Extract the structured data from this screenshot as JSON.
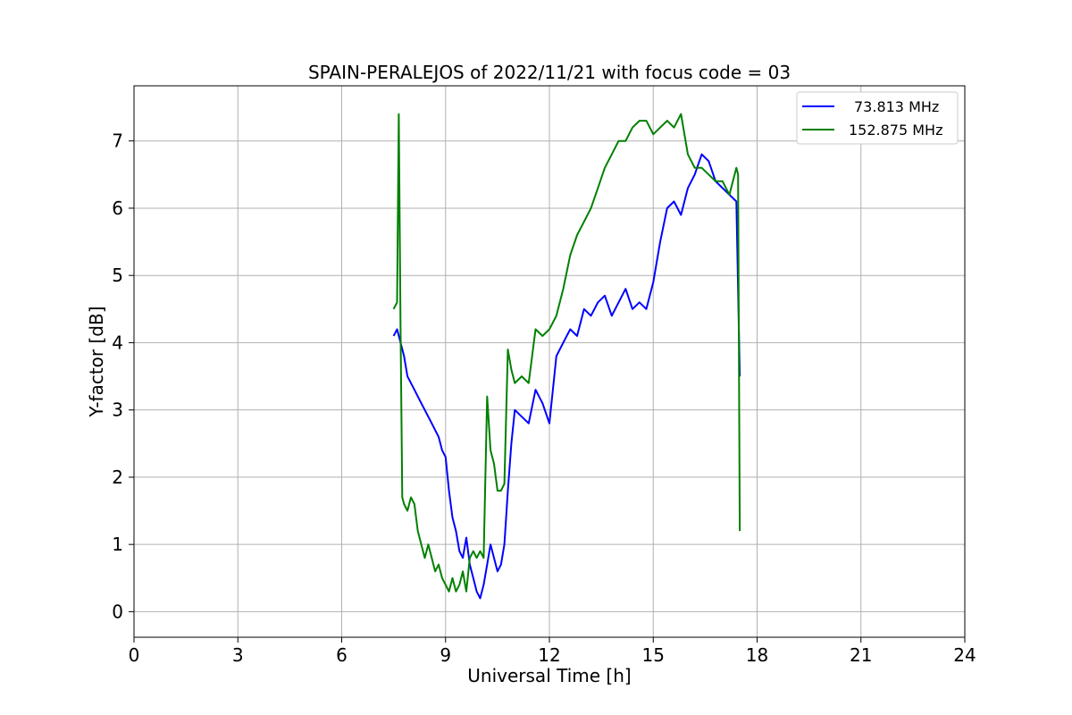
{
  "chart_data": {
    "type": "line",
    "title": "SPAIN-PERALEJOS of 2022/11/21 with focus code = 03",
    "xlabel": "Universal Time [h]",
    "ylabel": "Y-factor [dB]",
    "xlim": [
      0,
      24
    ],
    "ylim": [
      -0.38,
      7.82
    ],
    "xticks": [
      0,
      3,
      6,
      9,
      12,
      15,
      18,
      21,
      24
    ],
    "yticks": [
      0,
      1,
      2,
      3,
      4,
      5,
      6,
      7
    ],
    "grid": true,
    "legend_position": "top-right",
    "series": [
      {
        "name": "73.813 MHz",
        "color": "#0000ff",
        "x": [
          7.5,
          7.6,
          7.7,
          7.8,
          7.9,
          8.0,
          8.1,
          8.2,
          8.3,
          8.4,
          8.5,
          8.6,
          8.7,
          8.8,
          8.9,
          9.0,
          9.1,
          9.2,
          9.3,
          9.4,
          9.5,
          9.6,
          9.7,
          9.8,
          9.9,
          10.0,
          10.1,
          10.2,
          10.3,
          10.4,
          10.5,
          10.6,
          10.7,
          10.8,
          10.9,
          11.0,
          11.2,
          11.4,
          11.6,
          11.8,
          12.0,
          12.2,
          12.4,
          12.6,
          12.8,
          13.0,
          13.2,
          13.4,
          13.6,
          13.8,
          14.0,
          14.2,
          14.4,
          14.6,
          14.8,
          15.0,
          15.2,
          15.4,
          15.6,
          15.8,
          16.0,
          16.2,
          16.4,
          16.6,
          16.8,
          17.0,
          17.2,
          17.4,
          17.5
        ],
        "y": [
          4.1,
          4.2,
          4.0,
          3.8,
          3.5,
          3.4,
          3.3,
          3.2,
          3.1,
          3.0,
          2.9,
          2.8,
          2.7,
          2.6,
          2.4,
          2.3,
          1.8,
          1.4,
          1.2,
          0.9,
          0.8,
          1.1,
          0.7,
          0.5,
          0.3,
          0.2,
          0.4,
          0.7,
          1.0,
          0.8,
          0.6,
          0.7,
          1.0,
          1.8,
          2.5,
          3.0,
          2.9,
          2.8,
          3.3,
          3.1,
          2.8,
          3.8,
          4.0,
          4.2,
          4.1,
          4.5,
          4.4,
          4.6,
          4.7,
          4.4,
          4.6,
          4.8,
          4.5,
          4.6,
          4.5,
          4.9,
          5.5,
          6.0,
          6.1,
          5.9,
          6.3,
          6.5,
          6.8,
          6.7,
          6.4,
          6.3,
          6.2,
          6.1,
          3.5
        ]
      },
      {
        "name": "152.875 MHz",
        "color": "#008000",
        "x": [
          7.5,
          7.6,
          7.65,
          7.7,
          7.75,
          7.8,
          7.9,
          8.0,
          8.1,
          8.2,
          8.3,
          8.4,
          8.5,
          8.6,
          8.7,
          8.8,
          8.9,
          9.0,
          9.1,
          9.2,
          9.3,
          9.4,
          9.5,
          9.6,
          9.7,
          9.8,
          9.9,
          10.0,
          10.1,
          10.2,
          10.3,
          10.4,
          10.5,
          10.6,
          10.7,
          10.8,
          10.9,
          11.0,
          11.2,
          11.4,
          11.6,
          11.8,
          12.0,
          12.2,
          12.4,
          12.6,
          12.8,
          13.0,
          13.2,
          13.4,
          13.6,
          13.8,
          14.0,
          14.2,
          14.4,
          14.6,
          14.8,
          15.0,
          15.2,
          15.4,
          15.6,
          15.8,
          16.0,
          16.2,
          16.4,
          16.6,
          16.8,
          17.0,
          17.2,
          17.4,
          17.45,
          17.5
        ],
        "y": [
          4.5,
          4.6,
          7.4,
          4.2,
          1.7,
          1.6,
          1.5,
          1.7,
          1.6,
          1.2,
          1.0,
          0.8,
          1.0,
          0.8,
          0.6,
          0.7,
          0.5,
          0.4,
          0.3,
          0.5,
          0.3,
          0.4,
          0.6,
          0.3,
          0.8,
          0.9,
          0.8,
          0.9,
          0.8,
          3.2,
          2.4,
          2.2,
          1.8,
          1.8,
          1.9,
          3.9,
          3.6,
          3.4,
          3.5,
          3.4,
          4.2,
          4.1,
          4.2,
          4.4,
          4.8,
          5.3,
          5.6,
          5.8,
          6.0,
          6.3,
          6.6,
          6.8,
          7.0,
          7.0,
          7.2,
          7.3,
          7.3,
          7.1,
          7.2,
          7.3,
          7.2,
          7.4,
          6.8,
          6.6,
          6.6,
          6.5,
          6.4,
          6.4,
          6.2,
          6.6,
          6.5,
          1.2
        ]
      }
    ]
  }
}
